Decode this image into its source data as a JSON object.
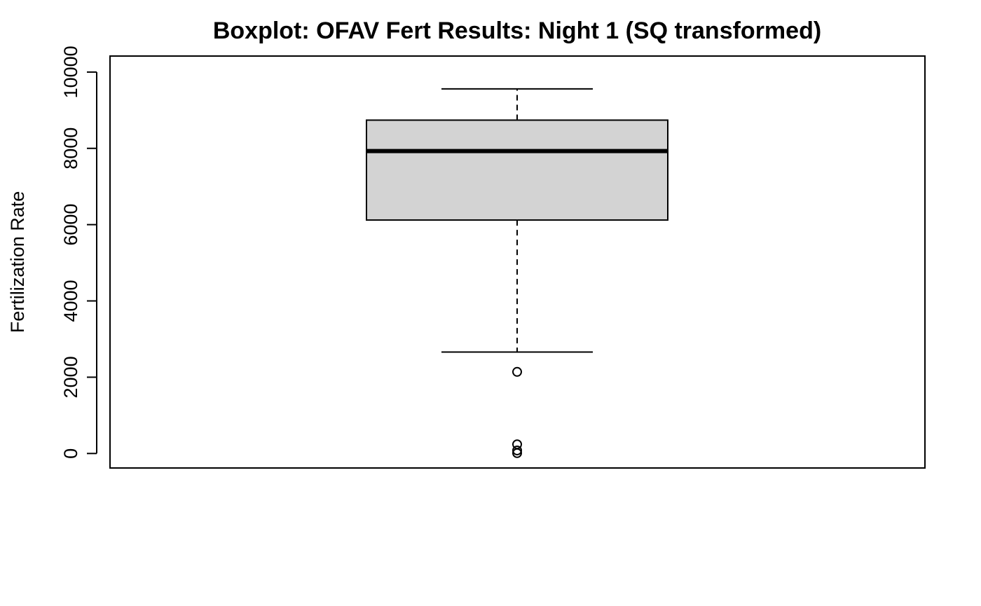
{
  "chart_data": {
    "type": "box",
    "title": "Boxplot: OFAV Fert Results: Night 1 (SQ transformed)",
    "xlabel": "",
    "ylabel": "Fertilization Rate",
    "ylim": [
      -380,
      10420
    ],
    "yticks": [
      0,
      2000,
      4000,
      6000,
      8000,
      10000
    ],
    "grid": false,
    "box": {
      "whisker_low": 2660,
      "q1": 6120,
      "median": 7930,
      "q3": 8740,
      "whisker_high": 9560,
      "outliers": [
        2140,
        240,
        80,
        10
      ],
      "fill": "#d3d3d3",
      "stroke": "#000000"
    }
  }
}
